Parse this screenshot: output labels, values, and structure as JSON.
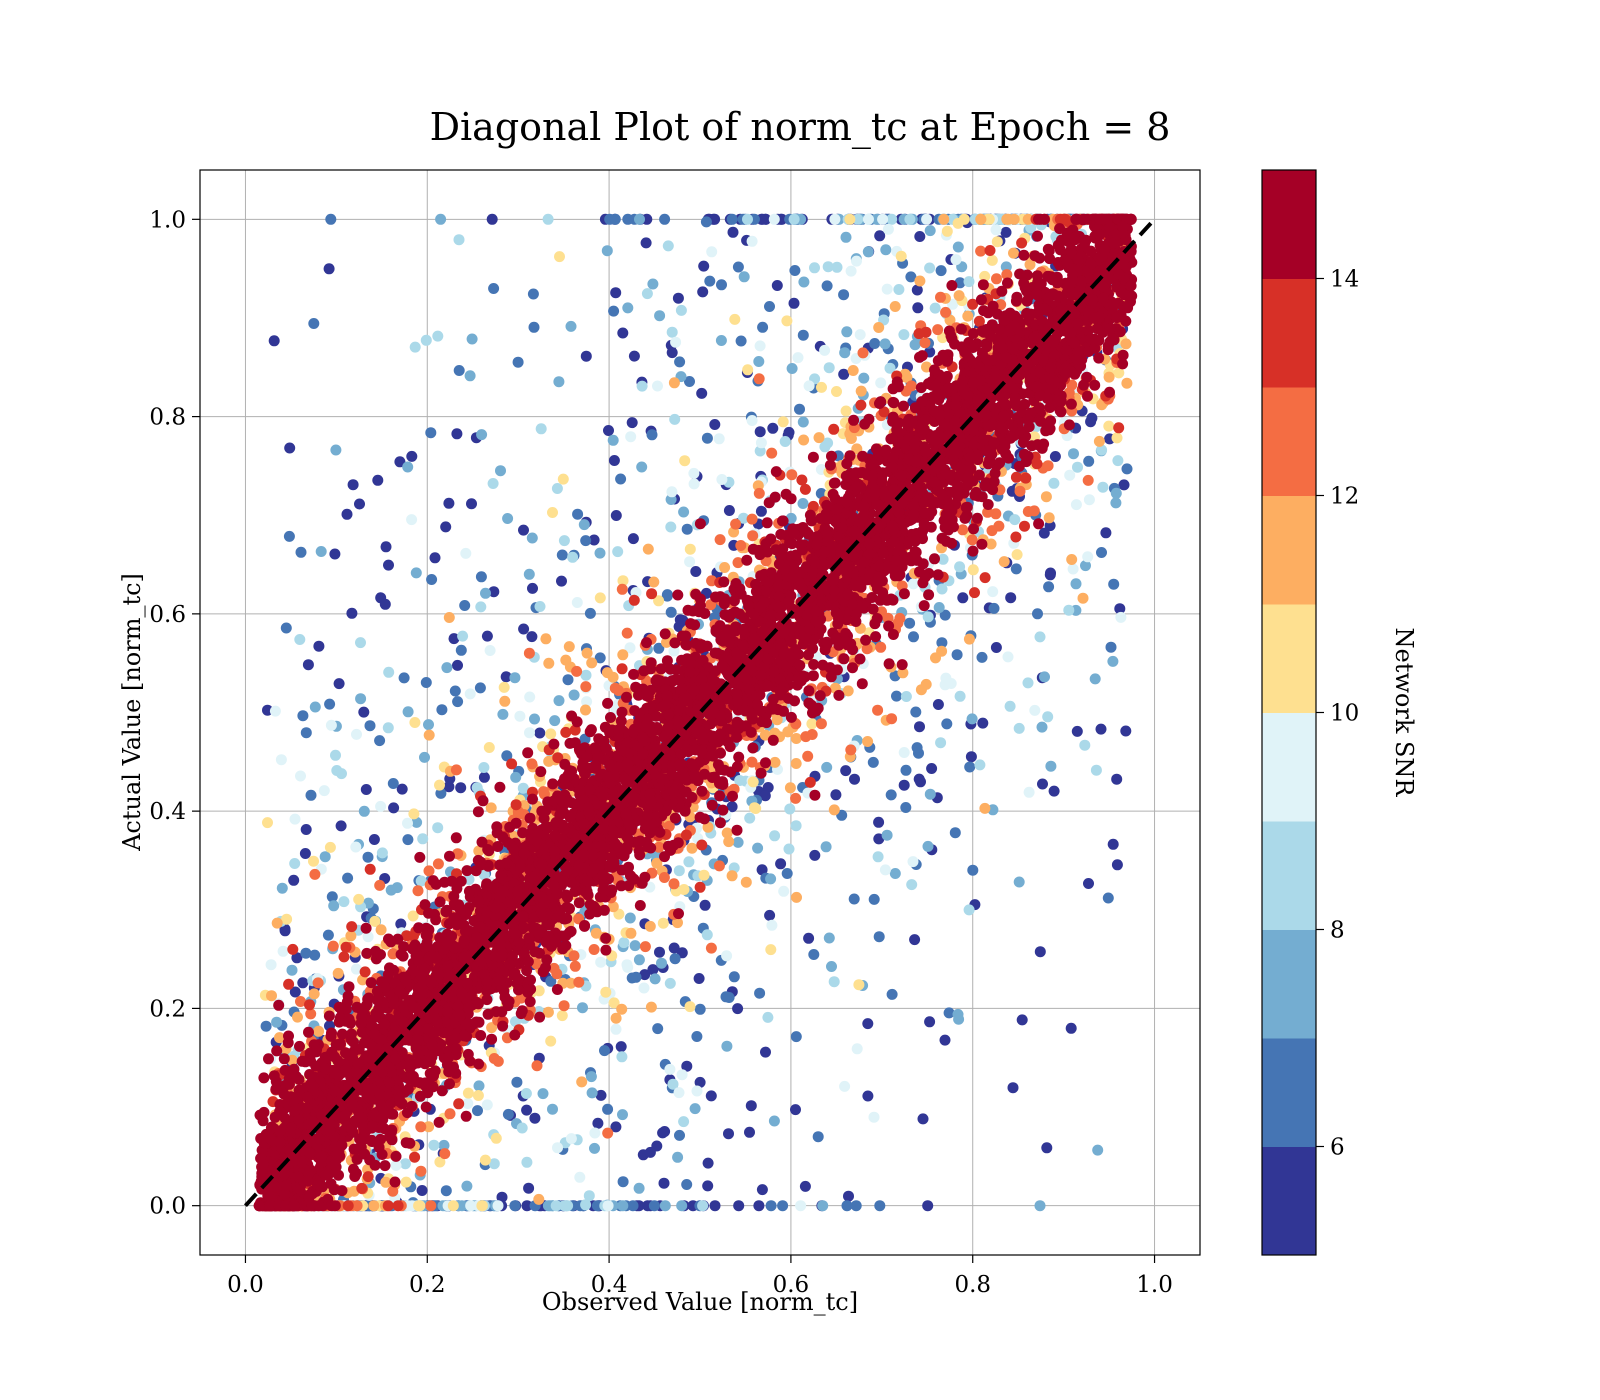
{
  "chart_data": {
    "type": "scatter",
    "title": "Diagonal Plot of norm_tc at Epoch = 8",
    "xlabel": "Observed Value [norm_tc]",
    "ylabel": "Actual Value [norm_tc]",
    "xlim": [
      -0.05,
      1.05
    ],
    "ylim": [
      -0.05,
      1.05
    ],
    "x_ticks": [
      "0.0",
      "0.2",
      "0.4",
      "0.6",
      "0.8",
      "1.0"
    ],
    "y_ticks": [
      "0.0",
      "0.2",
      "0.4",
      "0.6",
      "0.8",
      "1.0"
    ],
    "grid": true,
    "reference_line": {
      "style": "dashed",
      "color": "#000000",
      "from": [
        0,
        0
      ],
      "to": [
        1,
        1
      ]
    },
    "marker": "circle",
    "color_by": "Network SNR",
    "colorbar": {
      "label": "Network SNR",
      "range": [
        5,
        15
      ],
      "tick_labels": [
        "6",
        "8",
        "10",
        "12",
        "14"
      ],
      "tick_values": [
        6,
        8,
        10,
        12,
        14
      ],
      "colors": [
        "#313695",
        "#4575b4",
        "#74add1",
        "#abd9e9",
        "#e0f3f8",
        "#fee090",
        "#fdae61",
        "#f46d43",
        "#d73027",
        "#a50026"
      ]
    },
    "distribution": {
      "description_points": "points cluster tightly along y = x for high SNR; low-SNR points spread widely across the plot",
      "high_snr_band_halfwidth": 0.1
    }
  }
}
